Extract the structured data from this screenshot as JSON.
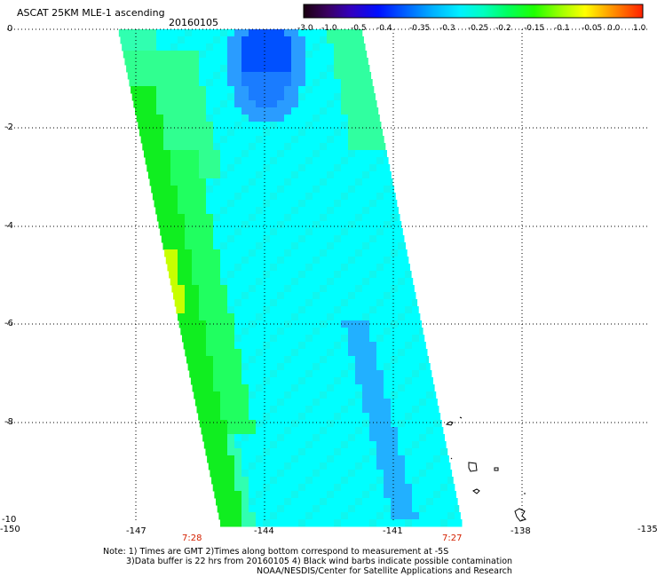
{
  "title": "ASCAT 25KM MLE-1 ascending",
  "date": "20160105",
  "colorbar": {
    "labels": [
      "-3.0",
      "-1.0",
      "-0.5",
      "-0.4",
      "-0.35",
      "-0.3",
      "-0.25",
      "-0.2",
      "-0.15",
      "-0.1",
      "-0.05",
      "0.0",
      "1.0"
    ],
    "colors": [
      "#2a0028",
      "#3b0090",
      "#1a1aff",
      "#0070ff",
      "#00b8ff",
      "#00ffff",
      "#00ffb0",
      "#00ff40",
      "#40ff00",
      "#c0ff00",
      "#ffff00",
      "#ff8000",
      "#ff0000"
    ]
  },
  "axes": {
    "lat_labels": [
      "0",
      "-2",
      "-4",
      "-6",
      "-8",
      "-10"
    ],
    "lon_labels": [
      "-150",
      "-147",
      "-144",
      "-141",
      "-138",
      "-135"
    ],
    "lat_range": [
      -10,
      0
    ],
    "lon_range": [
      -150,
      -135
    ]
  },
  "times": {
    "left": "7:28",
    "right": "7:27"
  },
  "notes": {
    "line1": "Note: 1) Times are GMT 2)Times along bottom correspond to measurement at -5S",
    "line2": "3)Data buffer is 22 hrs from 20160105 4) Black wind barbs indicate possible contamination",
    "line3": "NOAA/NESDIS/Center for Satellite Applications and Research"
  }
}
